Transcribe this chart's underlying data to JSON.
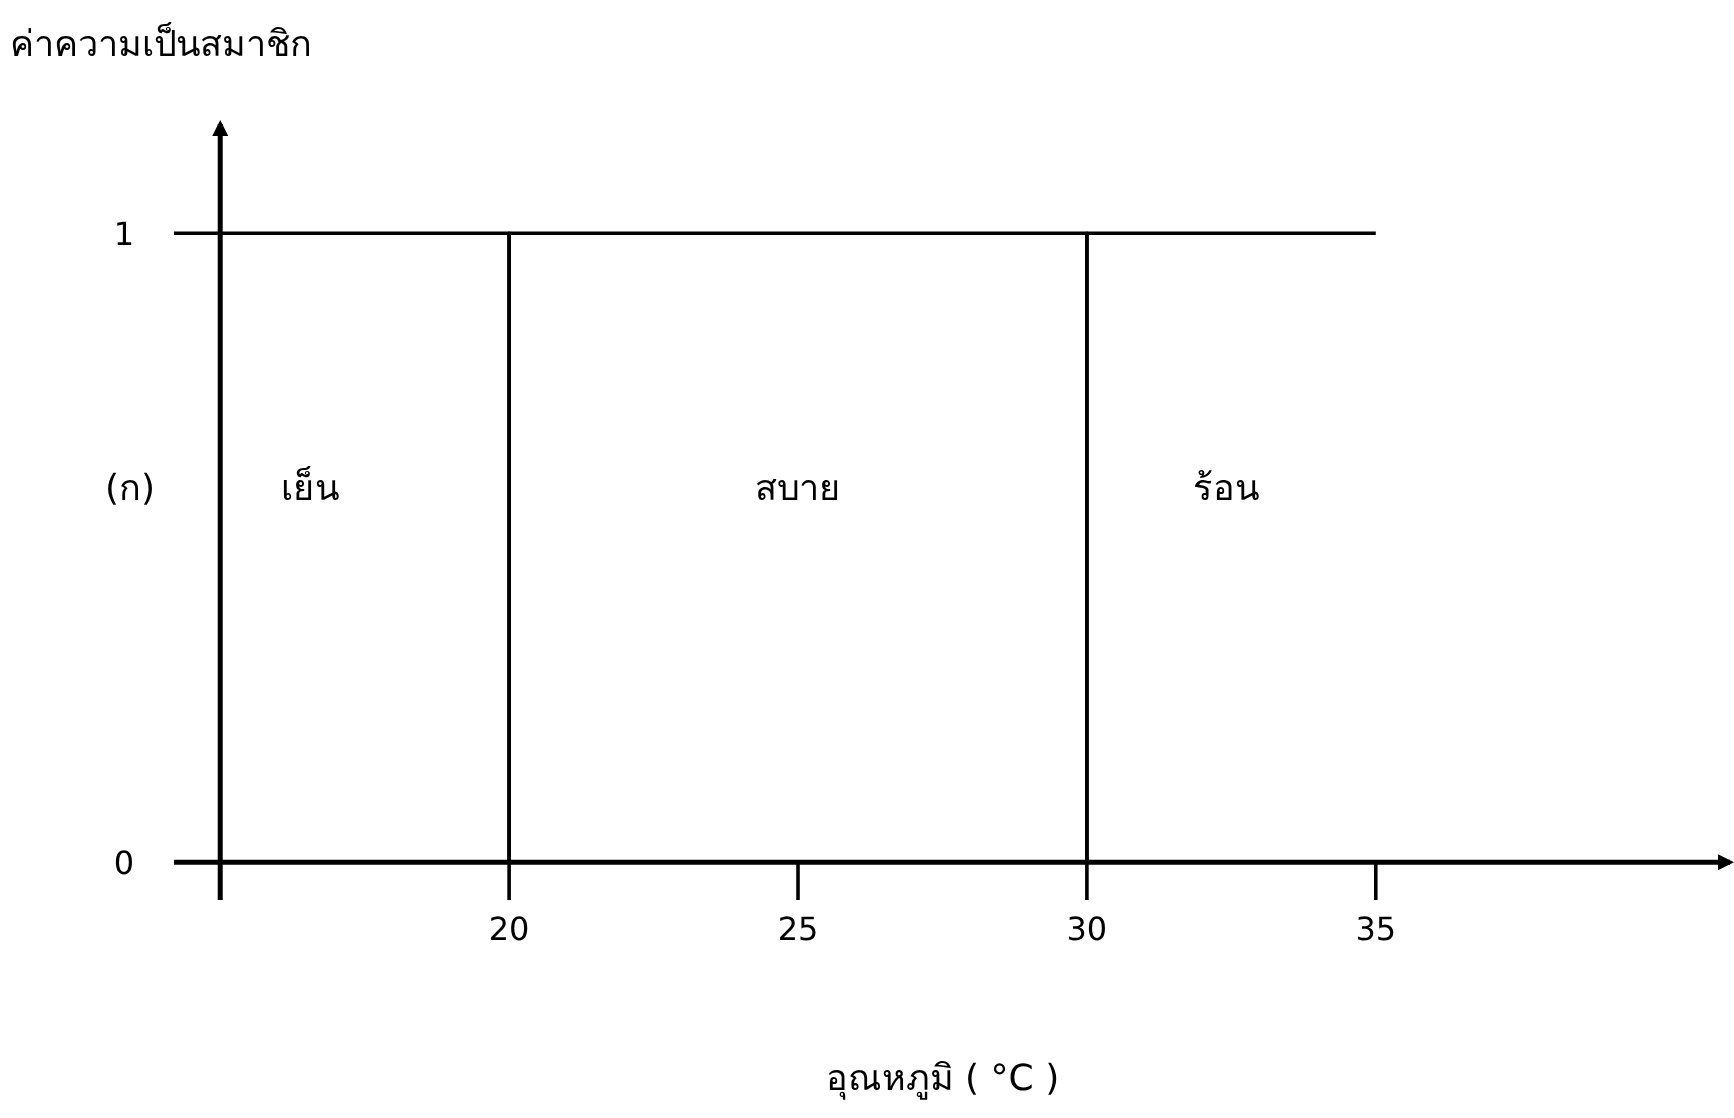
{
  "chart_data": {
    "type": "line",
    "xlabel": "อุณหภูมิ ( °C )",
    "ylabel": "ค่าความเป็นสมาชิก",
    "series": [
      {
        "color": "#000000",
        "x": [
          15,
          20,
          20
        ],
        "values": [
          1,
          1,
          0
        ]
      },
      {
        "color": "#000000",
        "x": [
          20,
          20,
          30,
          30
        ],
        "values": [
          0,
          1,
          1,
          0
        ]
      },
      {
        "color": "#000000",
        "x": [
          30,
          30,
          35
        ],
        "values": [
          0,
          1,
          1
        ]
      }
    ],
    "xlim": [
      14.2,
      41.2
    ],
    "ylim": [
      -0.06,
      1.18
    ],
    "xticks": [
      20,
      25,
      30,
      35
    ],
    "yticks": [
      {
        "value": 0,
        "label": "0"
      },
      {
        "value": 1,
        "label": "1"
      }
    ],
    "annotations": [
      "(ก)",
      "เย็น",
      "สบาย",
      "ร้อน"
    ],
    "ref_lines": [
      {
        "axis": "x",
        "value": 15
      }
    ],
    "grid": false,
    "marker": "none",
    "line_style": "solid"
  }
}
